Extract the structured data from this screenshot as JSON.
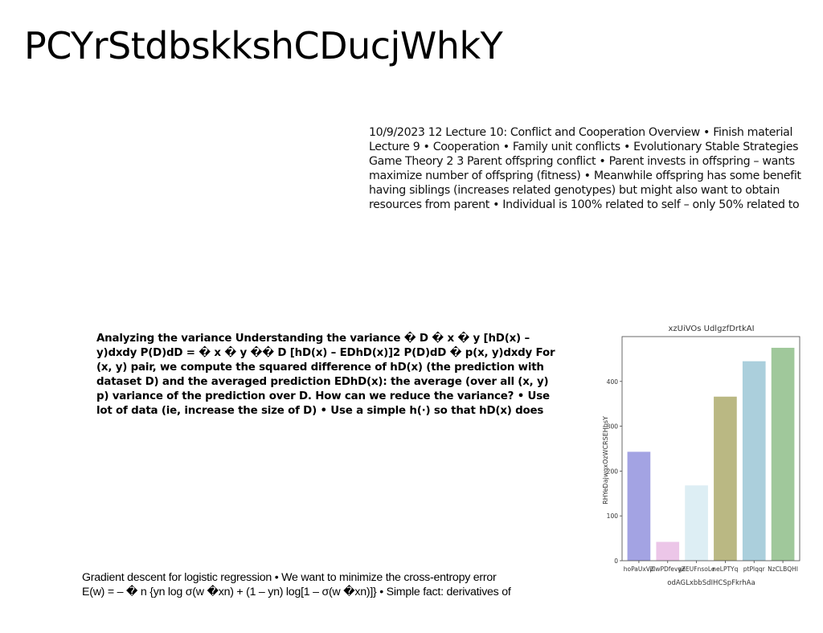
{
  "page": {
    "title": "PCYrStdbskkshCDucjWhkY"
  },
  "blocks": {
    "lecture_notes": [
      "10/9/2023 12 Lecture 10: Conflict and Cooperation Overview • Finish material",
      "Lecture 9 • Cooperation • Family unit conflicts • Evolutionary Stable Strategies",
      "Game Theory 2 3 Parent offspring conflict • Parent invests in offspring – wants",
      "maximize number of offspring (fitness) • Meanwhile offspring has some benefit",
      "having siblings (increases related genotypes) but might also want to obtain",
      "resources from parent • Individual is 100% related to self – only 50% related to"
    ],
    "variance_notes": [
      "Analyzing the variance Understanding the variance � D � x � y [hD(x) –",
      "y)dxdy P(D)dD = � x � y �� D [hD(x) – EDhD(x)]2 P(D)dD � p(x, y)dxdy For",
      "(x, y) pair, we compute the squared difference of hD(x) (the prediction with",
      "dataset D) and the averaged prediction EDhD(x): the average (over all (x, y)",
      "p) variance of the prediction over D. How can we reduce the variance? • Use",
      "lot of data (ie, increase the size of D) • Use a simple h(·) so that hD(x) does"
    ],
    "gradient_notes": [
      "Gradient descent for logistic regression • We want to minimize the cross-entropy error",
      "E(w) = – � n {yn log σ(w �xn) + (1 – yn) log[1 – σ(w �xn)]} • Simple fact: derivatives of"
    ]
  },
  "chart_data": {
    "type": "bar",
    "title": "xzUiVOs UdlgzfDrtkAI",
    "xlabel": "odAGLxbbSdIHCSpFkrhAa",
    "ylabel": "RHYeDajwqxOzWCRSEHbsY",
    "categories": [
      "hoPaUxVZ",
      "plwPDfevyZ",
      "geEUFnsoLe",
      "neLPTYq",
      "ptPlqqr",
      "NzCLBQHI"
    ],
    "values": [
      243,
      42,
      168,
      366,
      445,
      475
    ],
    "colors": [
      "#a3a3e3",
      "#ecc6e8",
      "#ddeef4",
      "#bab883",
      "#abcfdc",
      "#a0c89b"
    ],
    "ylim": [
      0,
      500
    ],
    "yticks": [
      0,
      100,
      200,
      300,
      400
    ],
    "grid": false,
    "legend": "none"
  }
}
